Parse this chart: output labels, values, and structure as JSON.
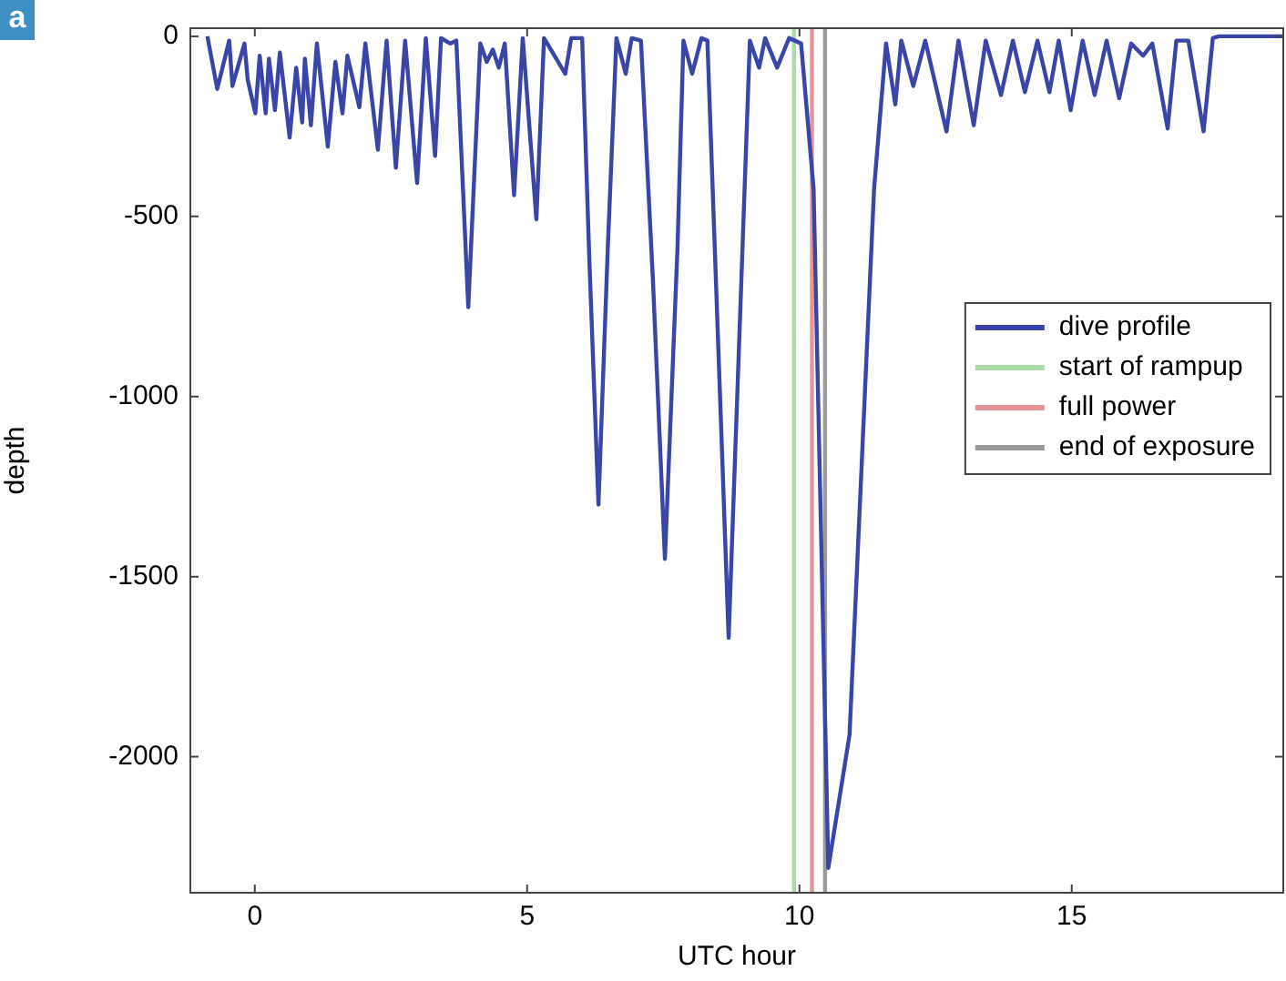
{
  "chart_data": {
    "type": "line",
    "xlabel": "UTC hour",
    "ylabel": "depth",
    "annotations": [
      "a"
    ],
    "xlim": [
      -1.2,
      18.9
    ],
    "ylim": [
      -2380,
      25
    ],
    "xticks": [
      0,
      5,
      10,
      15
    ],
    "yticks": [
      -2000,
      -1500,
      -1000,
      -500,
      0
    ],
    "grid": false,
    "legend": "right",
    "marker": "none",
    "line_style": "solid",
    "series": [
      {
        "name": "dive profile",
        "color": "#3a45a8",
        "x": [
          -0.87,
          -0.69,
          -0.47,
          -0.41,
          -0.19,
          -0.13,
          0.01,
          0.09,
          0.2,
          0.26,
          0.37,
          0.46,
          0.64,
          0.76,
          0.87,
          0.92,
          1.03,
          1.14,
          1.34,
          1.48,
          1.61,
          1.7,
          1.92,
          2.03,
          2.26,
          2.42,
          2.59,
          2.76,
          2.98,
          3.14,
          3.31,
          3.42,
          3.59,
          3.7,
          3.92,
          4.14,
          4.26,
          4.37,
          4.48,
          4.59,
          4.76,
          4.92,
          5.17,
          5.31,
          5.37,
          5.7,
          5.81,
          6.01,
          6.14,
          6.31,
          6.48,
          6.64,
          6.81,
          6.92,
          7.09,
          7.31,
          7.53,
          7.76,
          7.87,
          8.03,
          8.2,
          8.31,
          8.7,
          9.09,
          9.26,
          9.37,
          9.59,
          9.81,
          10.03,
          10.26,
          10.53,
          10.92,
          11.37,
          11.59,
          11.76,
          11.87,
          12.09,
          12.31,
          12.7,
          12.92,
          13.2,
          13.42,
          13.7,
          13.92,
          14.14,
          14.37,
          14.59,
          14.76,
          14.98,
          15.2,
          15.42,
          15.64,
          15.87,
          16.09,
          16.31,
          16.48,
          16.76,
          16.92,
          17.14,
          17.42,
          17.59,
          17.7,
          18.9
        ],
        "values": [
          0,
          -146,
          -12,
          -138,
          -20,
          -121,
          -214,
          -54,
          -214,
          -62,
          -205,
          -45,
          -281,
          -87,
          -239,
          -62,
          -247,
          -20,
          -306,
          -71,
          -214,
          -54,
          -197,
          -20,
          -315,
          -12,
          -365,
          -12,
          -407,
          -5,
          -332,
          -5,
          -20,
          -12,
          -752,
          -20,
          -71,
          -37,
          -87,
          -20,
          -441,
          -5,
          -508,
          -5,
          -20,
          -104,
          -5,
          -5,
          -609,
          -1300,
          -592,
          -5,
          -104,
          -5,
          -12,
          -677,
          -1451,
          -592,
          -12,
          -104,
          -5,
          -12,
          -1670,
          -12,
          -87,
          -5,
          -87,
          -5,
          -20,
          -424,
          -2309,
          -1939,
          -424,
          -20,
          -189,
          -12,
          -138,
          -12,
          -264,
          -12,
          -247,
          -12,
          -163,
          -12,
          -155,
          -12,
          -155,
          -12,
          -205,
          -12,
          -163,
          -12,
          -172,
          -20,
          -54,
          -20,
          -256,
          -12,
          -12,
          -264,
          -5,
          0,
          0
        ]
      },
      {
        "name": "start of rampup",
        "color": "#a8dca8",
        "x": [
          9.9,
          9.9
        ],
        "values": [
          -2380,
          25
        ]
      },
      {
        "name": "full power",
        "color": "#e89494",
        "x": [
          10.23,
          10.23
        ],
        "values": [
          -2380,
          25
        ]
      },
      {
        "name": "end of exposure",
        "color": "#9a9a9a",
        "x": [
          10.47,
          10.47
        ],
        "values": [
          -2380,
          25
        ]
      }
    ]
  }
}
